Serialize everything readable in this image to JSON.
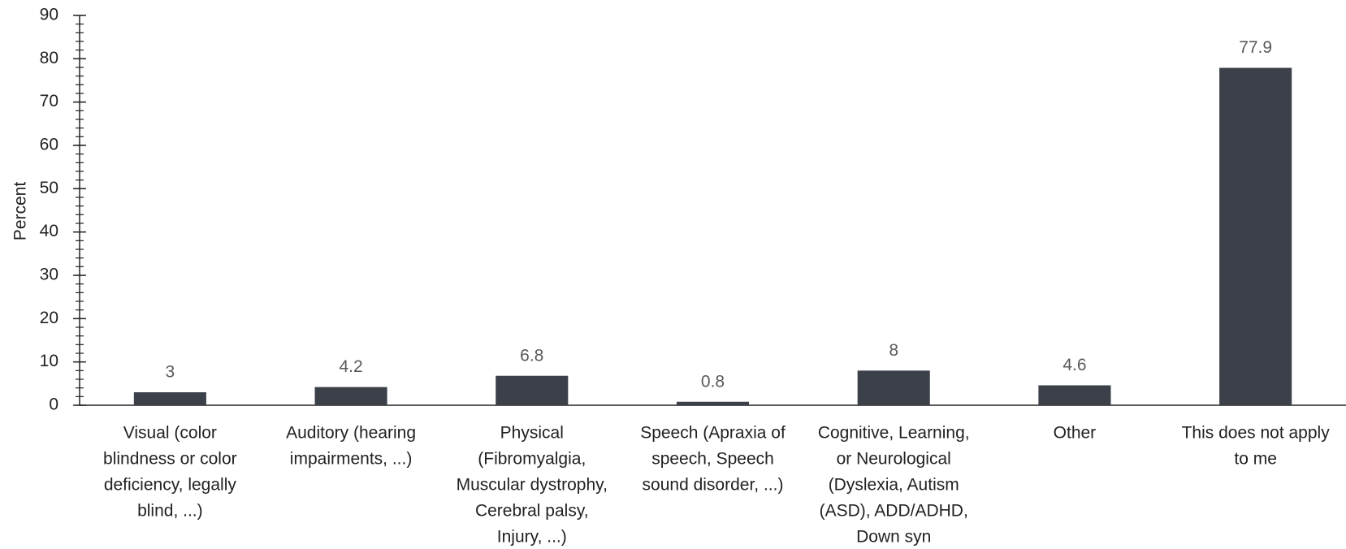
{
  "chart_data": {
    "type": "bar",
    "y_label": "Percent",
    "categories": [
      [
        "Visual (color",
        "blindness or color",
        "deficiency, legally",
        "blind, ...)"
      ],
      [
        "Auditory (hearing",
        "impairments, ...)"
      ],
      [
        "Physical",
        "(Fibromyalgia,",
        "Muscular dystrophy,",
        "Cerebral palsy,",
        "Injury, ...)"
      ],
      [
        "Speech (Apraxia of",
        "speech, Speech",
        "sound disorder, ...)"
      ],
      [
        "Cognitive, Learning,",
        "or Neurological",
        "(Dyslexia, Autism",
        "(ASD), ADD/ADHD,",
        "Down syn"
      ],
      [
        "Other"
      ],
      [
        "This does not apply",
        "to me"
      ]
    ],
    "values": [
      3,
      4.2,
      6.8,
      0.8,
      8,
      4.6,
      77.9
    ],
    "color": "#3b4049",
    "ylim": [
      0,
      90
    ],
    "yticks": [
      0,
      10,
      20,
      30,
      40,
      50,
      60,
      70,
      80,
      90
    ],
    "yminor": 2
  }
}
